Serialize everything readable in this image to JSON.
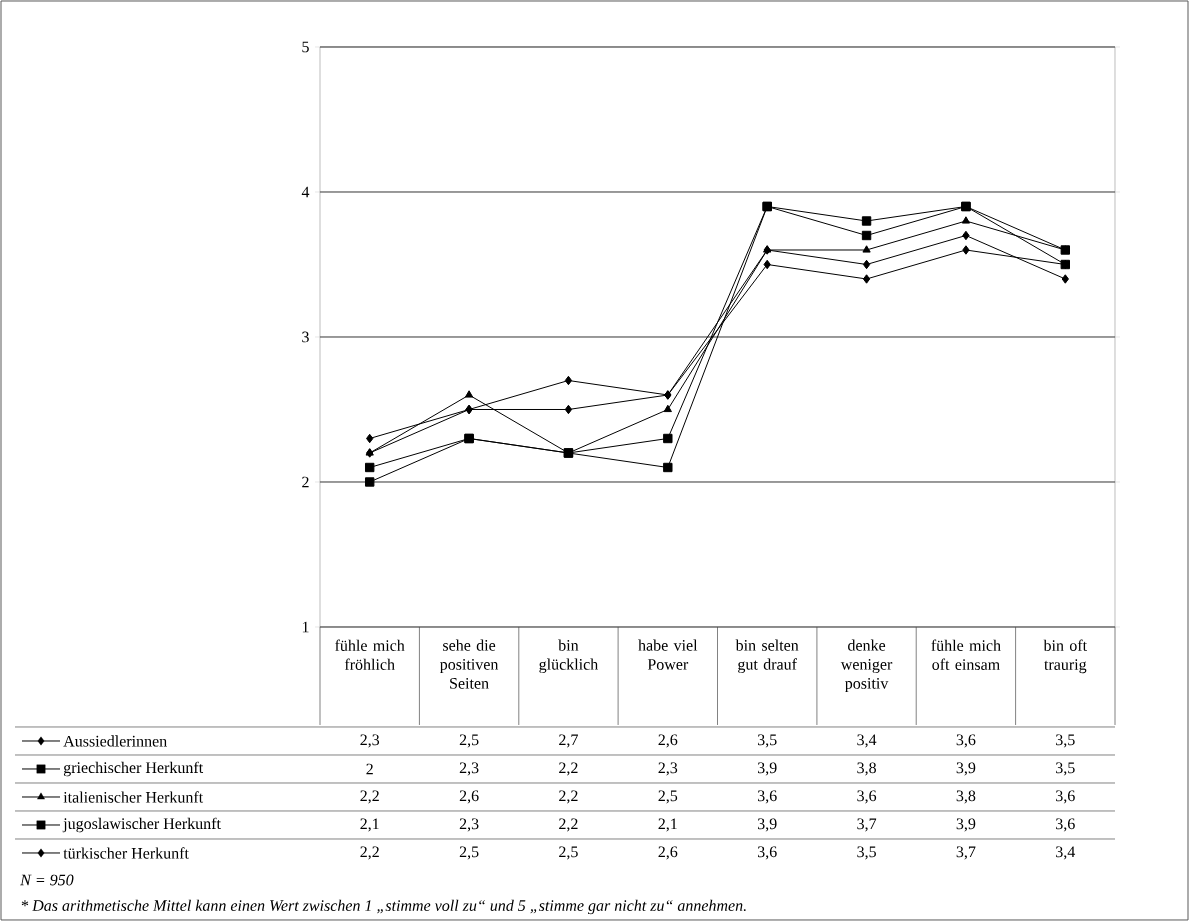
{
  "chart_data": {
    "type": "line",
    "categories": [
      "fühle mich fröhlich",
      "sehe die positiven Seiten",
      "bin glücklich",
      "habe viel Power",
      "bin selten gut drauf",
      "denke weniger positiv",
      "fühle mich oft einsam",
      "bin oft traurig"
    ],
    "series": [
      {
        "name": "Aussiedlerinnen",
        "color": "#000000",
        "marker": "diamond",
        "values": [
          2.3,
          2.5,
          2.7,
          2.6,
          3.5,
          3.4,
          3.6,
          3.5
        ],
        "value_labels": [
          "2,3",
          "2,5",
          "2,7",
          "2,6",
          "3,5",
          "3,4",
          "3,6",
          "3,5"
        ]
      },
      {
        "name": "griechischer Herkunft",
        "color": "#000000",
        "marker": "square",
        "values": [
          2,
          2.3,
          2.2,
          2.3,
          3.9,
          3.8,
          3.9,
          3.5
        ],
        "value_labels": [
          "2",
          "2,3",
          "2,2",
          "2,3",
          "3,9",
          "3,8",
          "3,9",
          "3,5"
        ]
      },
      {
        "name": "italienischer Herkunft",
        "color": "#000000",
        "marker": "triangle",
        "values": [
          2.2,
          2.6,
          2.2,
          2.5,
          3.6,
          3.6,
          3.8,
          3.6
        ],
        "value_labels": [
          "2,2",
          "2,6",
          "2,2",
          "2,5",
          "3,6",
          "3,6",
          "3,8",
          "3,6"
        ]
      },
      {
        "name": "jugoslawischer Herkunft",
        "color": "#000000",
        "marker": "square",
        "values": [
          2.1,
          2.3,
          2.2,
          2.1,
          3.9,
          3.7,
          3.9,
          3.6
        ],
        "value_labels": [
          "2,1",
          "2,3",
          "2,2",
          "2,1",
          "3,9",
          "3,7",
          "3,9",
          "3,6"
        ]
      },
      {
        "name": "türkischer Herkunft",
        "color": "#000000",
        "marker": "diamond",
        "values": [
          2.2,
          2.5,
          2.5,
          2.6,
          3.6,
          3.5,
          3.7,
          3.4
        ],
        "value_labels": [
          "2,2",
          "2,5",
          "2,5",
          "2,6",
          "3,6",
          "3,5",
          "3,7",
          "3,4"
        ]
      }
    ],
    "ylim": [
      1,
      5
    ],
    "yticks": [
      1,
      2,
      3,
      4,
      5
    ],
    "grid": "y",
    "legend": "bottom left",
    "line_style": "solid",
    "annotations": [
      "N = 950",
      "* Das arithmetische Mittel kann einen Wert zwischen 1 „stimme voll zu“ und 5 „stimme gar nicht zu“ annehmen."
    ]
  }
}
